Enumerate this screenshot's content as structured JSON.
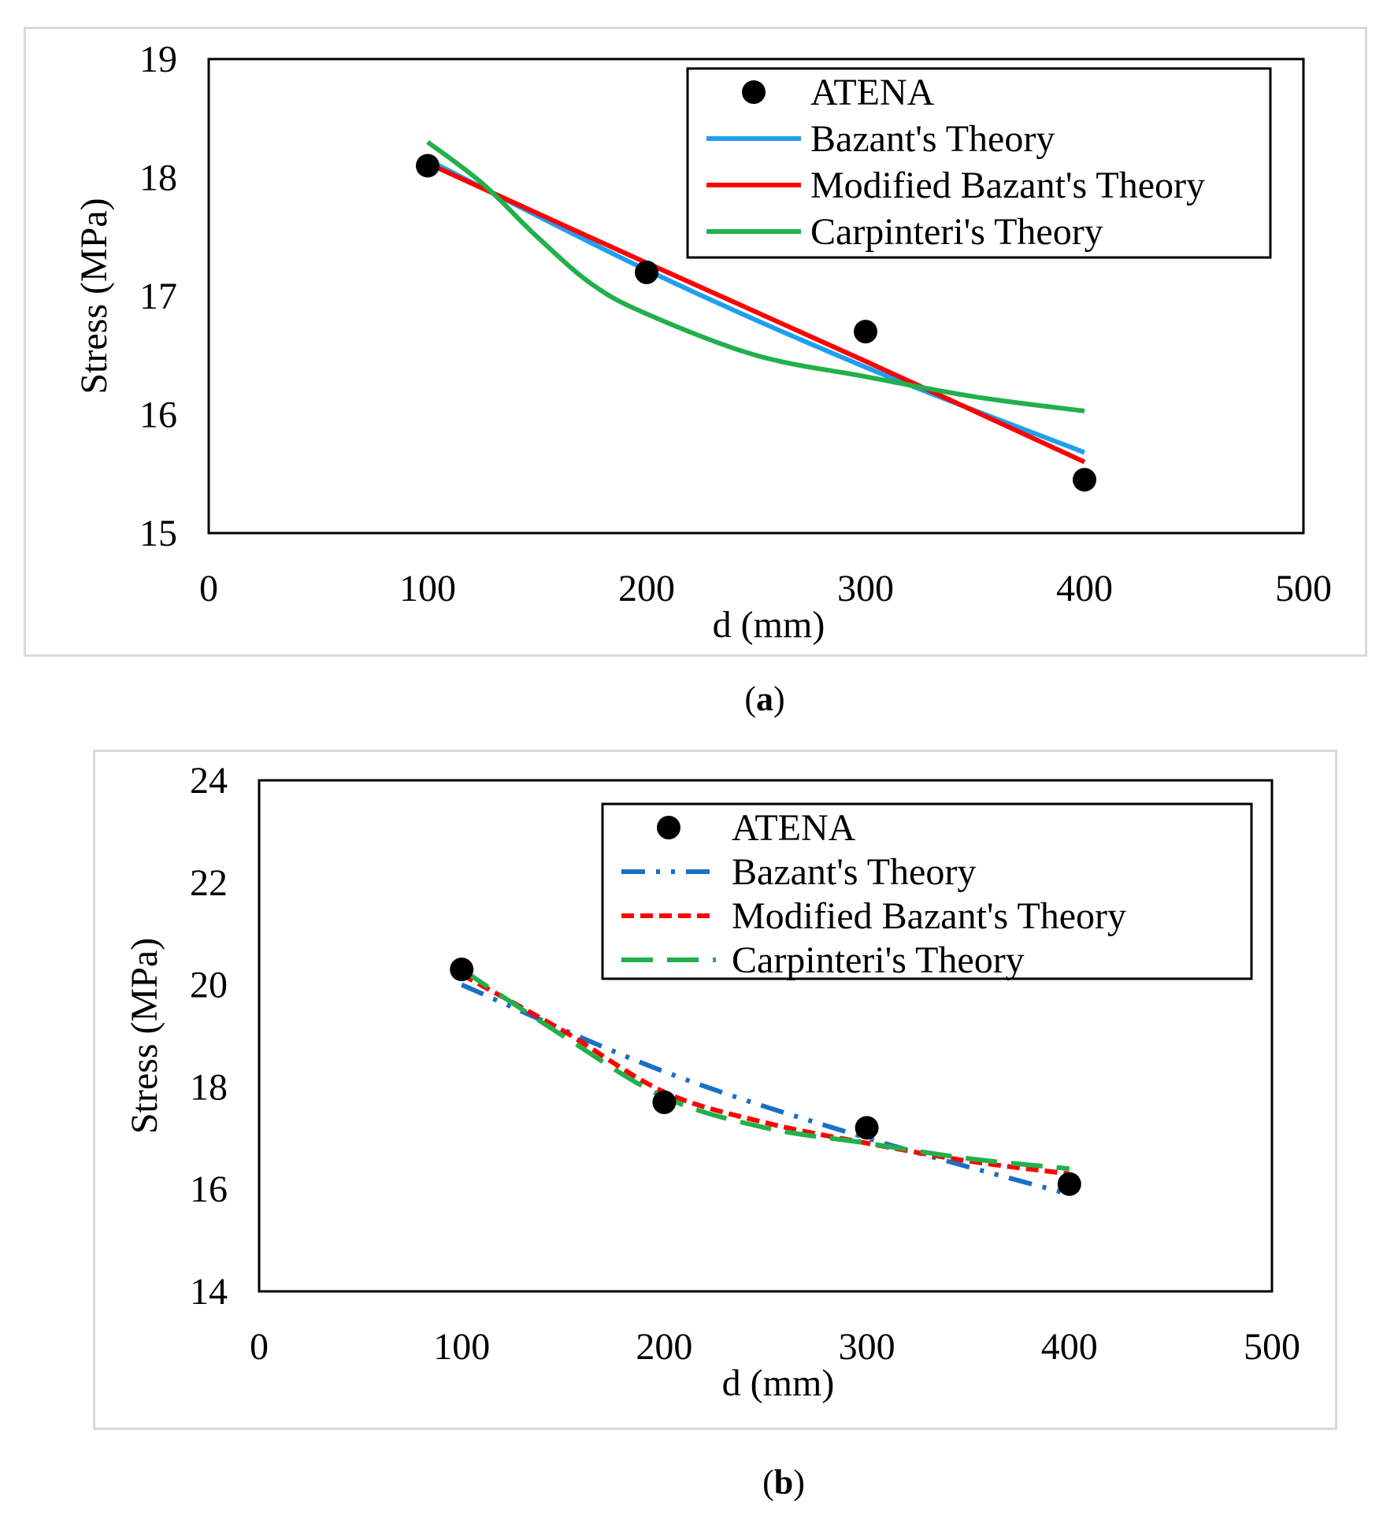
{
  "chart_data": [
    {
      "type": "line",
      "id": "a",
      "caption_label": "a",
      "xlabel": "d (mm)",
      "ylabel": "Stress (MPa)",
      "xlim": [
        0,
        500
      ],
      "ylim": [
        15,
        19
      ],
      "xticks": [
        0,
        100,
        200,
        300,
        400,
        500
      ],
      "yticks": [
        15,
        16,
        17,
        18,
        19
      ],
      "legend_position": "top-right",
      "series": [
        {
          "name": "ATENA",
          "kind": "markers",
          "color": "#000000",
          "x": [
            100,
            200,
            300,
            400
          ],
          "y": [
            18.1,
            17.2,
            16.7,
            15.45
          ]
        },
        {
          "name": "Bazant's Theory",
          "kind": "line",
          "style": "solid",
          "color": "#1e9ff0",
          "x": [
            100,
            200,
            300,
            400
          ],
          "y": [
            18.15,
            17.22,
            16.4,
            15.68
          ]
        },
        {
          "name": "Modified Bazant's Theory",
          "kind": "line",
          "style": "solid",
          "color": "#ff0000",
          "x": [
            100,
            200,
            300,
            400
          ],
          "y": [
            18.12,
            17.28,
            16.45,
            15.6
          ]
        },
        {
          "name": "Carpinteri's Theory",
          "kind": "line",
          "style": "solid",
          "color": "#22b04b",
          "x": [
            100,
            125,
            150,
            175,
            200,
            250,
            300,
            350,
            400
          ],
          "y": [
            18.3,
            17.95,
            17.5,
            17.1,
            16.85,
            16.5,
            16.32,
            16.15,
            16.03
          ]
        }
      ]
    },
    {
      "type": "line",
      "id": "b",
      "caption_label": "b",
      "xlabel": "d (mm)",
      "ylabel": "Stress (MPa)",
      "xlim": [
        0,
        500
      ],
      "ylim": [
        14,
        24
      ],
      "xticks": [
        0,
        100,
        200,
        300,
        400,
        500
      ],
      "yticks": [
        14,
        16,
        18,
        20,
        22,
        24
      ],
      "legend_position": "top-right",
      "series": [
        {
          "name": "ATENA",
          "kind": "markers",
          "color": "#000000",
          "x": [
            100,
            200,
            300,
            400
          ],
          "y": [
            20.3,
            17.7,
            17.2,
            16.1
          ]
        },
        {
          "name": "Bazant's Theory",
          "kind": "line",
          "style": "dashdotdot",
          "color": "#1a6fc6",
          "x": [
            100,
            200,
            300,
            400
          ],
          "y": [
            20.0,
            18.3,
            17.0,
            15.9
          ]
        },
        {
          "name": "Modified Bazant's Theory",
          "kind": "line",
          "style": "dash",
          "color": "#ff0000",
          "x": [
            100,
            150,
            200,
            250,
            300,
            350,
            400
          ],
          "y": [
            20.2,
            19.1,
            17.9,
            17.3,
            16.9,
            16.55,
            16.3
          ]
        },
        {
          "name": "Carpinteri's Theory",
          "kind": "line",
          "style": "longdash",
          "color": "#22b04b",
          "x": [
            100,
            150,
            200,
            250,
            300,
            350,
            400
          ],
          "y": [
            20.3,
            19.0,
            17.8,
            17.2,
            16.9,
            16.6,
            16.4
          ]
        }
      ]
    }
  ]
}
